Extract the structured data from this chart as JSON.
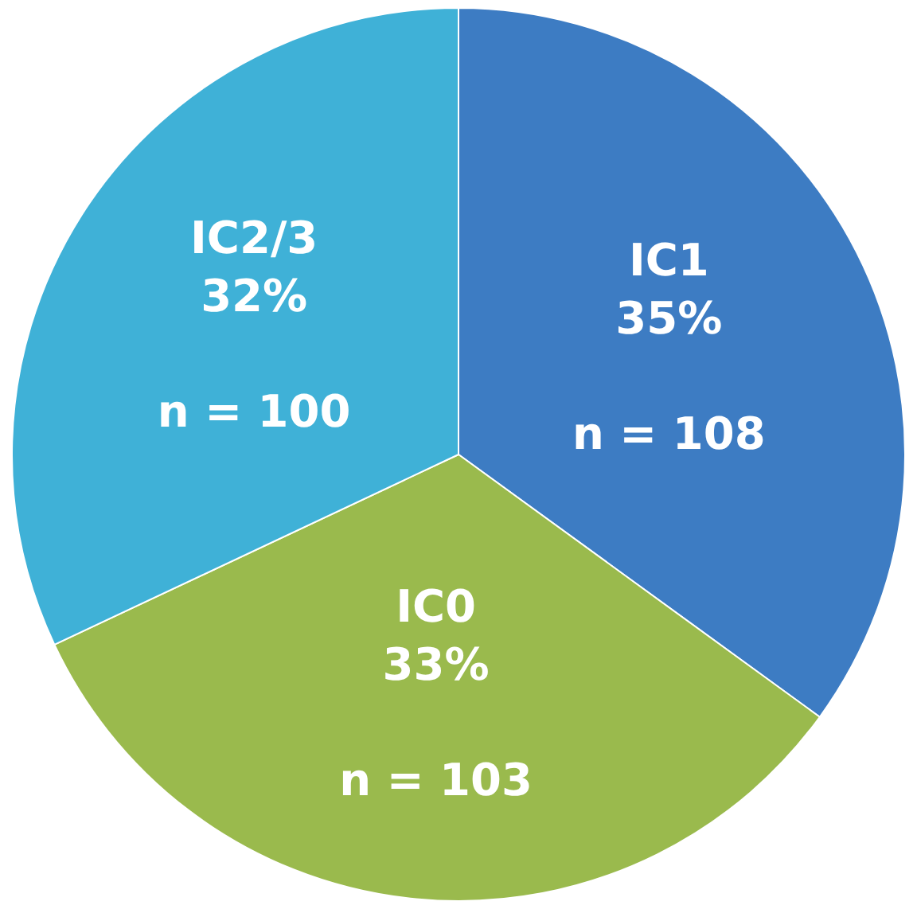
{
  "chart_data": {
    "type": "pie",
    "categories": [
      "IC1",
      "IC0",
      "IC2/3"
    ],
    "values": [
      35,
      33,
      32
    ],
    "value_labels": [
      "35%\n\nn = 108",
      "33%\n\nn = 103",
      "32%\n\nn = 100"
    ],
    "colors": [
      "#3d7cc3",
      "#9aba4d",
      "#3fb1d7"
    ],
    "legend": false
  }
}
